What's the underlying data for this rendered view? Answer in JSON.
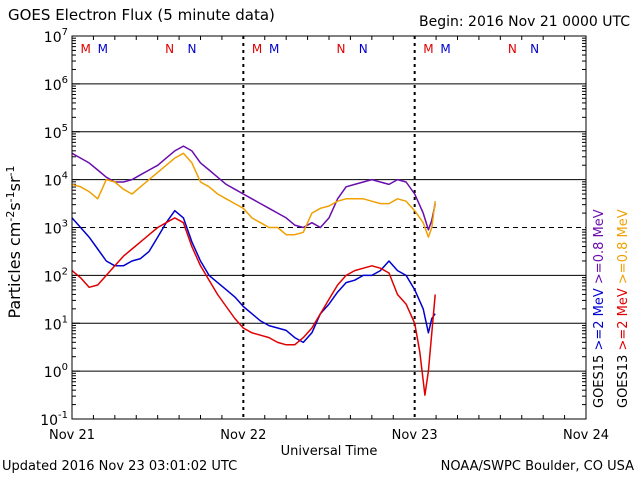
{
  "header": {
    "title": "GOES Electron Flux (5 minute data)",
    "begin": "Begin: 2016 Nov 21 0000 UTC"
  },
  "footer": {
    "updated": "Updated 2016 Nov 23 03:01:02 UTC",
    "source": "NOAA/SWPC Boulder, CO USA"
  },
  "chart_data": {
    "type": "line",
    "title": "GOES Electron Flux (5 minute data)",
    "xlabel": "Universal Time",
    "ylabel_parts": [
      "Particles cm",
      "-2",
      "s",
      "-1",
      "sr",
      "-1"
    ],
    "x_unit": "days since 2016 Nov 21 0000 UTC",
    "xlim": [
      0,
      3
    ],
    "ylim_log10": [
      -1,
      7
    ],
    "x_ticks": [
      {
        "x": 0,
        "label": "Nov 21"
      },
      {
        "x": 1,
        "label": "Nov 22"
      },
      {
        "x": 2,
        "label": "Nov 23"
      },
      {
        "x": 3,
        "label": "Nov 24"
      }
    ],
    "y_ticks": [
      {
        "exp": 7,
        "base": "10",
        "sup": "7"
      },
      {
        "exp": 6,
        "base": "10",
        "sup": "6"
      },
      {
        "exp": 5,
        "base": "10",
        "sup": "5"
      },
      {
        "exp": 4,
        "base": "10",
        "sup": "4"
      },
      {
        "exp": 3,
        "base": "10",
        "sup": "3"
      },
      {
        "exp": 2,
        "base": "10",
        "sup": "2"
      },
      {
        "exp": 1,
        "base": "10",
        "sup": "1"
      },
      {
        "exp": 0,
        "base": "10",
        "sup": "0"
      },
      {
        "exp": -1,
        "base": "10",
        "sup": "-1"
      }
    ],
    "threshold_log10": 3,
    "day_markers": [
      {
        "x": 0.08,
        "label": "M",
        "color": "#e00000"
      },
      {
        "x": 0.18,
        "label": "M",
        "color": "#0000d0"
      },
      {
        "x": 0.57,
        "label": "N",
        "color": "#e00000"
      },
      {
        "x": 0.7,
        "label": "N",
        "color": "#0000d0"
      },
      {
        "x": 1.08,
        "label": "M",
        "color": "#e00000"
      },
      {
        "x": 1.18,
        "label": "M",
        "color": "#0000d0"
      },
      {
        "x": 1.57,
        "label": "N",
        "color": "#e00000"
      },
      {
        "x": 1.7,
        "label": "N",
        "color": "#0000d0"
      },
      {
        "x": 2.08,
        "label": "M",
        "color": "#e00000"
      },
      {
        "x": 2.18,
        "label": "M",
        "color": "#0000d0"
      },
      {
        "x": 2.57,
        "label": "N",
        "color": "#e00000"
      },
      {
        "x": 2.7,
        "label": "N",
        "color": "#0000d0"
      }
    ],
    "legend": [
      {
        "name": "GOES15 >=0.8 MeV",
        "sat": "GOES15",
        "energy": ">=0.8 MeV",
        "color": "#6a0dad"
      },
      {
        "name": "GOES13 >=0.8 MeV",
        "sat": "GOES13",
        "energy": ">=0.8 MeV",
        "color": "#f0a000"
      },
      {
        "name": "GOES15 >=2 MeV",
        "sat": "GOES15",
        "energy": ">=2 MeV",
        "color": "#0000d0"
      },
      {
        "name": "GOES13 >=2 MeV",
        "sat": "GOES13",
        "energy": ">=2 MeV",
        "color": "#e00000"
      }
    ],
    "series": [
      {
        "name": "GOES15 >=0.8 MeV",
        "color": "#6a0dad",
        "x": [
          0,
          0.05,
          0.1,
          0.15,
          0.2,
          0.25,
          0.3,
          0.35,
          0.4,
          0.45,
          0.5,
          0.55,
          0.6,
          0.65,
          0.7,
          0.75,
          0.8,
          0.85,
          0.9,
          0.95,
          1.0,
          1.05,
          1.1,
          1.15,
          1.2,
          1.25,
          1.3,
          1.35,
          1.4,
          1.45,
          1.5,
          1.55,
          1.6,
          1.65,
          1.7,
          1.75,
          1.8,
          1.85,
          1.9,
          1.95,
          2.0,
          2.05,
          2.08,
          2.1,
          2.12
        ],
        "y_log10": [
          4.55,
          4.45,
          4.35,
          4.2,
          4.05,
          3.95,
          3.95,
          4.0,
          4.1,
          4.2,
          4.3,
          4.45,
          4.6,
          4.7,
          4.6,
          4.35,
          4.2,
          4.05,
          3.9,
          3.8,
          3.7,
          3.6,
          3.5,
          3.4,
          3.3,
          3.2,
          3.05,
          3.0,
          3.1,
          3.0,
          3.2,
          3.6,
          3.85,
          3.9,
          3.95,
          4.0,
          3.95,
          3.9,
          4.0,
          3.95,
          3.7,
          3.3,
          2.95,
          3.15,
          3.5
        ]
      },
      {
        "name": "GOES13 >=0.8 MeV",
        "color": "#f0a000",
        "x": [
          0,
          0.05,
          0.1,
          0.15,
          0.2,
          0.25,
          0.3,
          0.35,
          0.4,
          0.45,
          0.5,
          0.55,
          0.6,
          0.65,
          0.7,
          0.75,
          0.8,
          0.85,
          0.9,
          0.95,
          1.0,
          1.05,
          1.1,
          1.15,
          1.2,
          1.25,
          1.3,
          1.35,
          1.4,
          1.45,
          1.5,
          1.55,
          1.6,
          1.65,
          1.7,
          1.75,
          1.8,
          1.85,
          1.9,
          1.95,
          2.0,
          2.05,
          2.08,
          2.1,
          2.12
        ],
        "y_log10": [
          3.9,
          3.85,
          3.75,
          3.6,
          4.0,
          3.95,
          3.8,
          3.7,
          3.85,
          4.0,
          4.15,
          4.3,
          4.45,
          4.55,
          4.35,
          3.95,
          3.85,
          3.7,
          3.6,
          3.5,
          3.4,
          3.2,
          3.1,
          3.0,
          3.0,
          2.85,
          2.85,
          2.9,
          3.3,
          3.4,
          3.45,
          3.55,
          3.6,
          3.6,
          3.6,
          3.55,
          3.5,
          3.5,
          3.6,
          3.55,
          3.35,
          3.1,
          2.8,
          3.0,
          3.55
        ]
      },
      {
        "name": "GOES15 >=2 MeV",
        "color": "#0000d0",
        "x": [
          0,
          0.05,
          0.1,
          0.15,
          0.2,
          0.25,
          0.3,
          0.35,
          0.4,
          0.45,
          0.5,
          0.55,
          0.6,
          0.65,
          0.7,
          0.75,
          0.8,
          0.85,
          0.9,
          0.95,
          1.0,
          1.05,
          1.1,
          1.15,
          1.2,
          1.25,
          1.3,
          1.35,
          1.4,
          1.45,
          1.5,
          1.55,
          1.6,
          1.65,
          1.7,
          1.75,
          1.8,
          1.85,
          1.9,
          1.95,
          2.0,
          2.05,
          2.08,
          2.1,
          2.12
        ],
        "y_log10": [
          3.2,
          3.0,
          2.8,
          2.55,
          2.3,
          2.2,
          2.2,
          2.3,
          2.35,
          2.5,
          2.8,
          3.1,
          3.35,
          3.2,
          2.7,
          2.3,
          2.0,
          1.85,
          1.7,
          1.55,
          1.35,
          1.2,
          1.05,
          0.95,
          0.9,
          0.85,
          0.7,
          0.6,
          0.8,
          1.2,
          1.4,
          1.65,
          1.85,
          1.9,
          2.0,
          2.0,
          2.1,
          2.3,
          2.1,
          2.0,
          1.7,
          1.3,
          0.8,
          1.1,
          1.2
        ]
      },
      {
        "name": "GOES13 >=2 MeV",
        "color": "#e00000",
        "x": [
          0,
          0.05,
          0.1,
          0.15,
          0.2,
          0.25,
          0.3,
          0.35,
          0.4,
          0.45,
          0.5,
          0.55,
          0.6,
          0.65,
          0.7,
          0.75,
          0.8,
          0.85,
          0.9,
          0.95,
          1.0,
          1.05,
          1.1,
          1.15,
          1.2,
          1.25,
          1.3,
          1.35,
          1.4,
          1.45,
          1.5,
          1.55,
          1.6,
          1.65,
          1.7,
          1.75,
          1.8,
          1.85,
          1.9,
          1.95,
          2.0,
          2.03,
          2.06,
          2.08,
          2.1,
          2.12
        ],
        "y_log10": [
          2.1,
          1.95,
          1.75,
          1.8,
          2.0,
          2.2,
          2.4,
          2.55,
          2.7,
          2.85,
          3.0,
          3.1,
          3.2,
          3.1,
          2.6,
          2.2,
          1.9,
          1.6,
          1.35,
          1.1,
          0.9,
          0.8,
          0.75,
          0.7,
          0.6,
          0.55,
          0.55,
          0.7,
          0.9,
          1.2,
          1.5,
          1.8,
          2.0,
          2.1,
          2.15,
          2.2,
          2.15,
          2.05,
          1.6,
          1.4,
          1.0,
          0.4,
          -0.5,
          0.0,
          0.8,
          1.6
        ]
      }
    ]
  }
}
